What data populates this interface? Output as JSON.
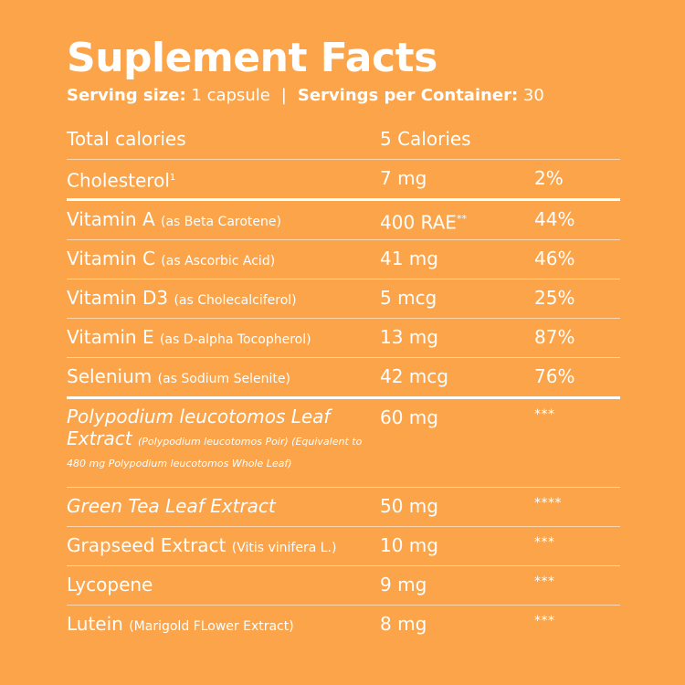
{
  "title": "Suplement Facts",
  "serving": {
    "size_label": "Serving size:",
    "size_value": " 1 capsule",
    "separator": "|",
    "per_label": "Servings per Container:",
    "per_value": " 30"
  },
  "rows": [
    {
      "name": "Total calories",
      "sub": "",
      "amount": "5 Calories",
      "amount_sup": "",
      "dv": ""
    },
    {
      "name": "Cholesterol",
      "name_sup": "1",
      "sub": "",
      "amount": "7 mg",
      "amount_sup": "",
      "dv": "2%"
    },
    {
      "name": "Vitamin A",
      "sub": "(as Beta Carotene)",
      "amount": "400 RAE",
      "amount_sup": "**",
      "dv": "44%"
    },
    {
      "name": "Vitamin C",
      "sub": "(as Ascorbic Acid)",
      "amount": "41 mg",
      "amount_sup": "",
      "dv": "46%"
    },
    {
      "name": "Vitamin D3",
      "sub": "(as Cholecalciferol)",
      "amount": "5 mcg",
      "amount_sup": "",
      "dv": "25%"
    },
    {
      "name": "Vitamin E",
      "sub": "(as D-alpha Tocopherol)",
      "amount": "13 mg",
      "amount_sup": "",
      "dv": "87%"
    },
    {
      "name": "Selenium",
      "sub": "(as Sodium Selenite)",
      "amount": "42 mcg",
      "amount_sup": "",
      "dv": "76%"
    },
    {
      "name": "Polypodium leucotomos Leaf Extract",
      "sub": "(Polypodium leucotomos Poir) (Equivalent to 480 mg Polypodium leucotomos Whole Leaf)",
      "amount": "60 mg",
      "amount_sup": "",
      "dv": "***"
    },
    {
      "name": "Green Tea Leaf Extract",
      "sub": "",
      "amount": "50 mg",
      "amount_sup": "",
      "dv": "****"
    },
    {
      "name": "Grapseed Extract",
      "sub": "(Vitis vinifera L.)",
      "amount": "10 mg",
      "amount_sup": "",
      "dv": "***"
    },
    {
      "name": "Lycopene",
      "sub": "",
      "amount": "9 mg",
      "amount_sup": "",
      "dv": "***"
    },
    {
      "name": "Lutein",
      "sub": "(Marigold FLower Extract)",
      "amount": "8 mg",
      "amount_sup": "",
      "dv": "***"
    }
  ],
  "colors": {
    "background": "#FBA449",
    "text": "#FFFFFF"
  }
}
